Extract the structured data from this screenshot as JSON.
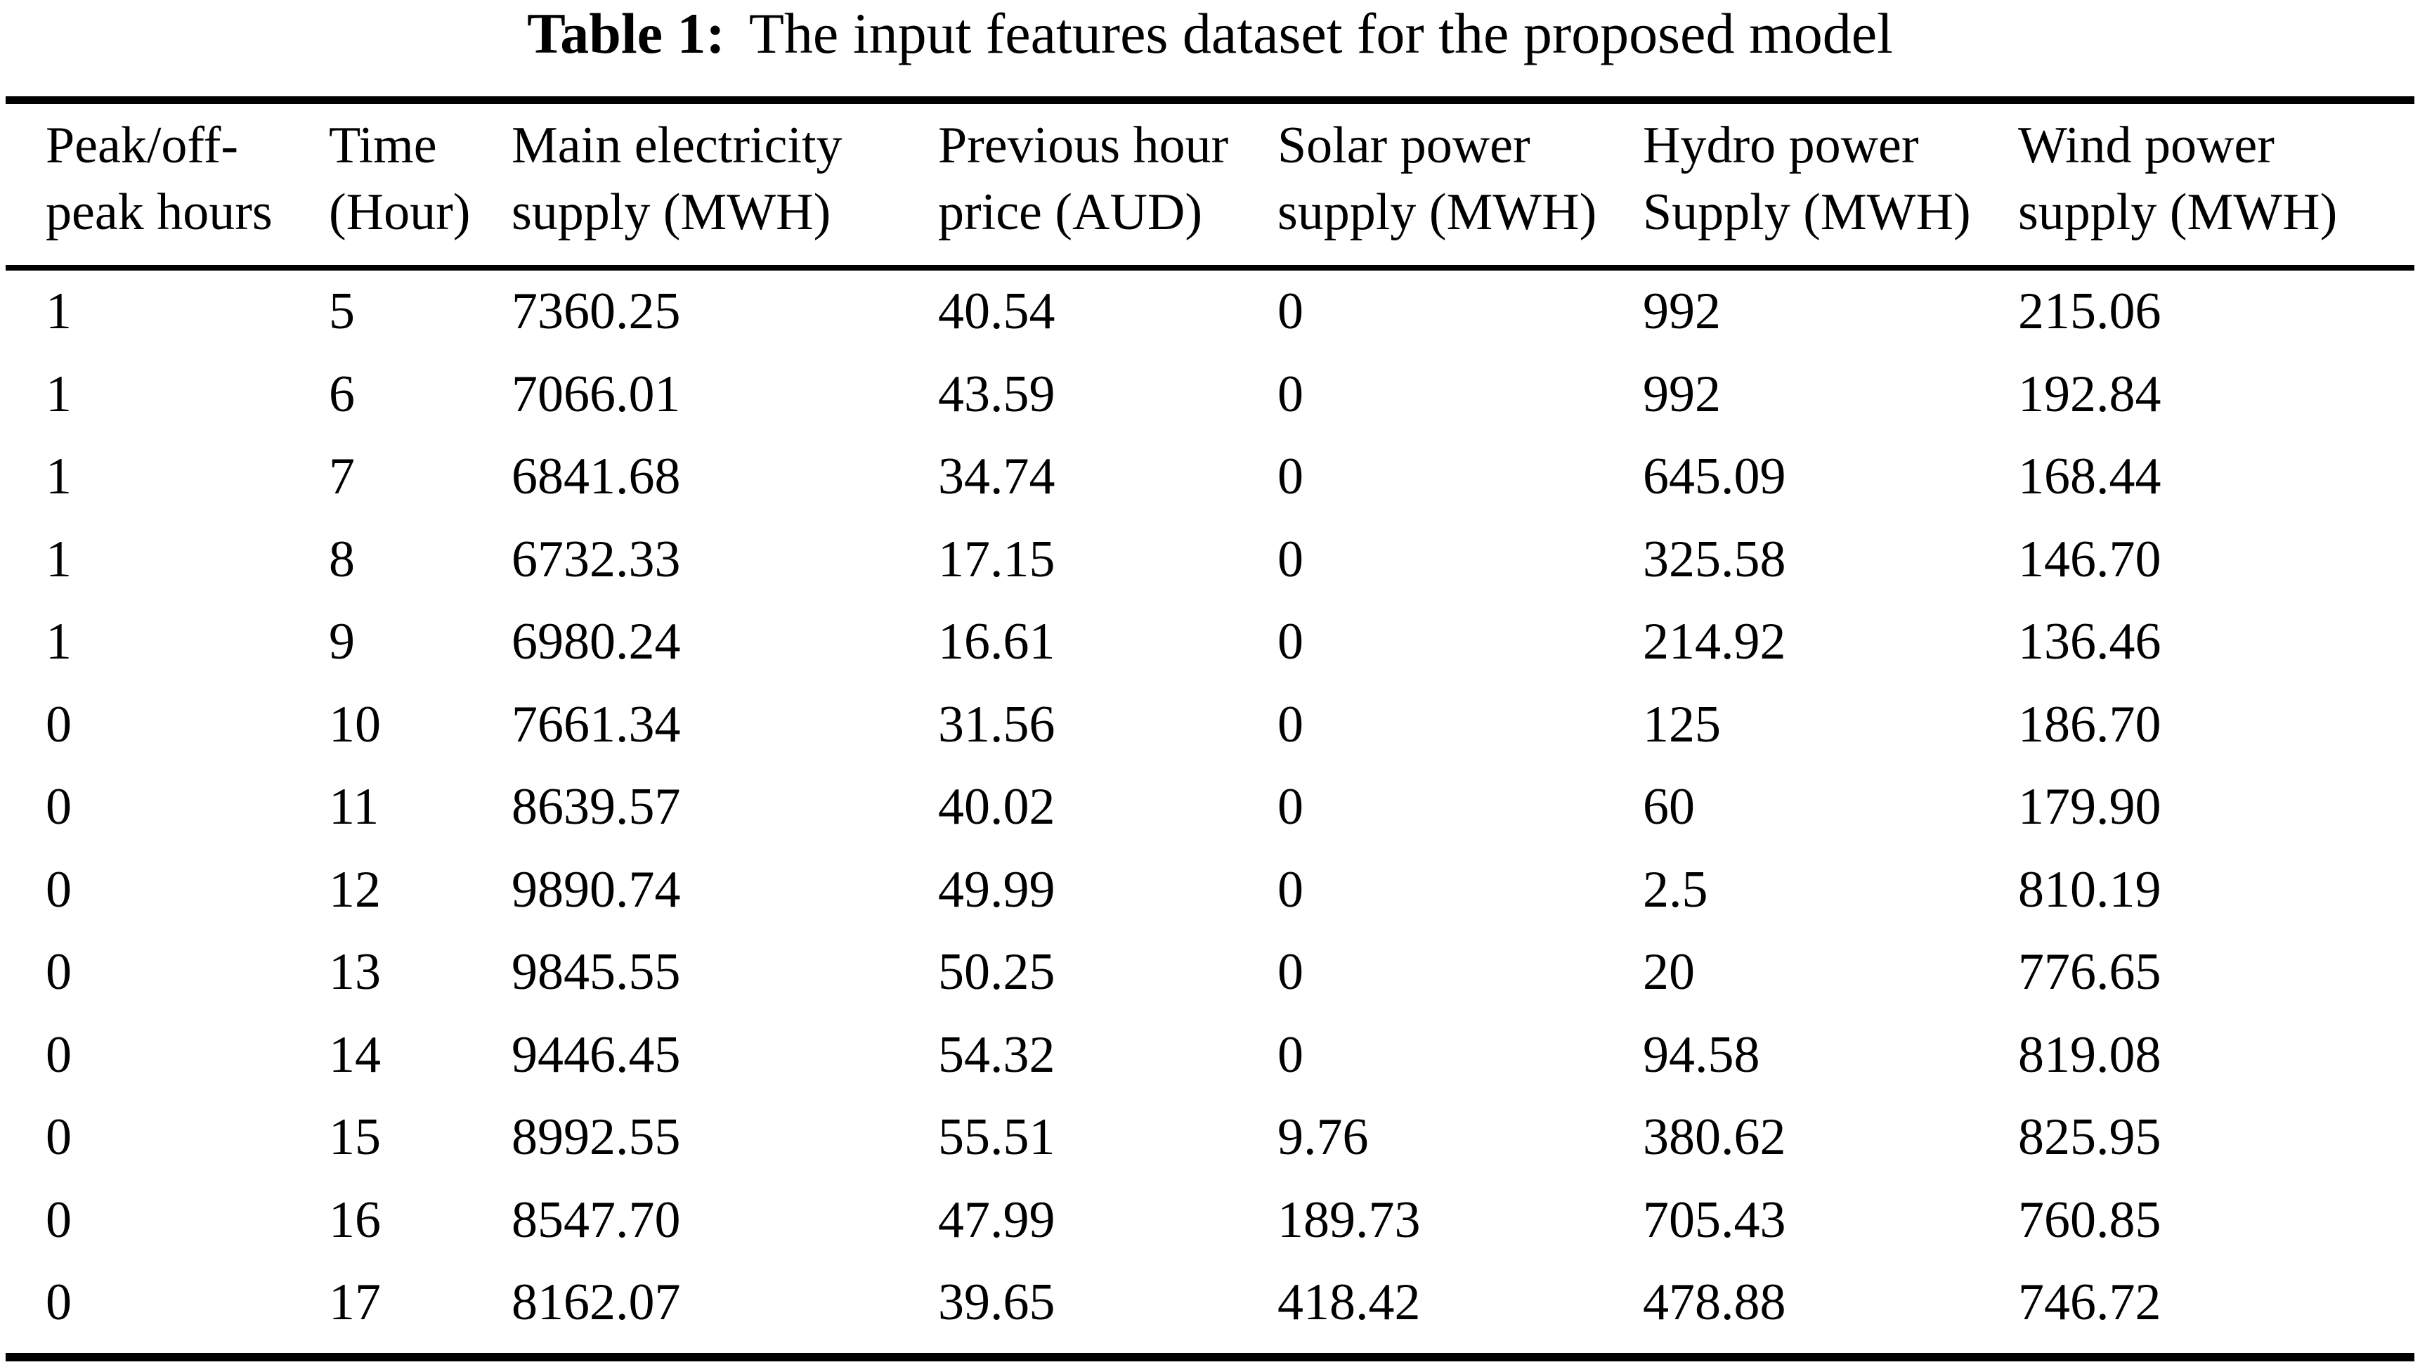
{
  "caption": {
    "label": "Table 1:",
    "text": "The input features dataset for the proposed model"
  },
  "table": {
    "columns": [
      {
        "line1": "Peak/off-",
        "line2": "peak hours"
      },
      {
        "line1": "Time",
        "line2": "(Hour)"
      },
      {
        "line1": "Main electricity",
        "line2": "supply (MWH)"
      },
      {
        "line1": "Previous hour",
        "line2": "price (AUD)"
      },
      {
        "line1": "Solar power",
        "line2": "supply (MWH)"
      },
      {
        "line1": "Hydro power",
        "line2": "Supply (MWH)"
      },
      {
        "line1": "Wind power",
        "line2": "supply (MWH)"
      }
    ],
    "rows": [
      [
        "1",
        "5",
        "7360.25",
        "40.54",
        "0",
        "992",
        "215.06"
      ],
      [
        "1",
        "6",
        "7066.01",
        "43.59",
        "0",
        "992",
        "192.84"
      ],
      [
        "1",
        "7",
        "6841.68",
        "34.74",
        "0",
        "645.09",
        "168.44"
      ],
      [
        "1",
        "8",
        "6732.33",
        "17.15",
        "0",
        "325.58",
        "146.70"
      ],
      [
        "1",
        "9",
        "6980.24",
        "16.61",
        "0",
        "214.92",
        "136.46"
      ],
      [
        "0",
        "10",
        "7661.34",
        "31.56",
        "0",
        "125",
        "186.70"
      ],
      [
        "0",
        "11",
        "8639.57",
        "40.02",
        "0",
        "60",
        "179.90"
      ],
      [
        "0",
        "12",
        "9890.74",
        "49.99",
        "0",
        "2.5",
        "810.19"
      ],
      [
        "0",
        "13",
        "9845.55",
        "50.25",
        "0",
        "20",
        "776.65"
      ],
      [
        "0",
        "14",
        "9446.45",
        "54.32",
        "0",
        "94.58",
        "819.08"
      ],
      [
        "0",
        "15",
        "8992.55",
        "55.51",
        "9.76",
        "380.62",
        "825.95"
      ],
      [
        "0",
        "16",
        "8547.70",
        "47.99",
        "189.73",
        "705.43",
        "760.85"
      ],
      [
        "0",
        "17",
        "8162.07",
        "39.65",
        "418.42",
        "478.88",
        "746.72"
      ]
    ]
  },
  "colors": {
    "background": "#ffffff",
    "text": "#000000",
    "rule": "#000000"
  }
}
